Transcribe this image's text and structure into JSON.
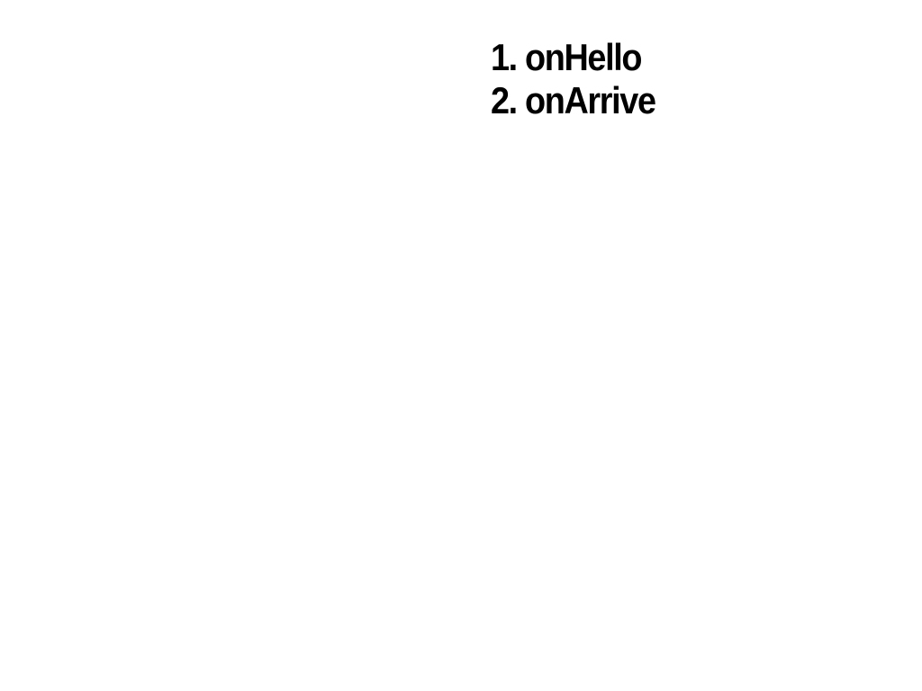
{
  "list": {
    "items": [
      {
        "number": "1.",
        "text": "onHello"
      },
      {
        "number": "2.",
        "text": "onArrive"
      }
    ]
  },
  "colors": {
    "background": "#ffffff",
    "text": "#000000"
  }
}
